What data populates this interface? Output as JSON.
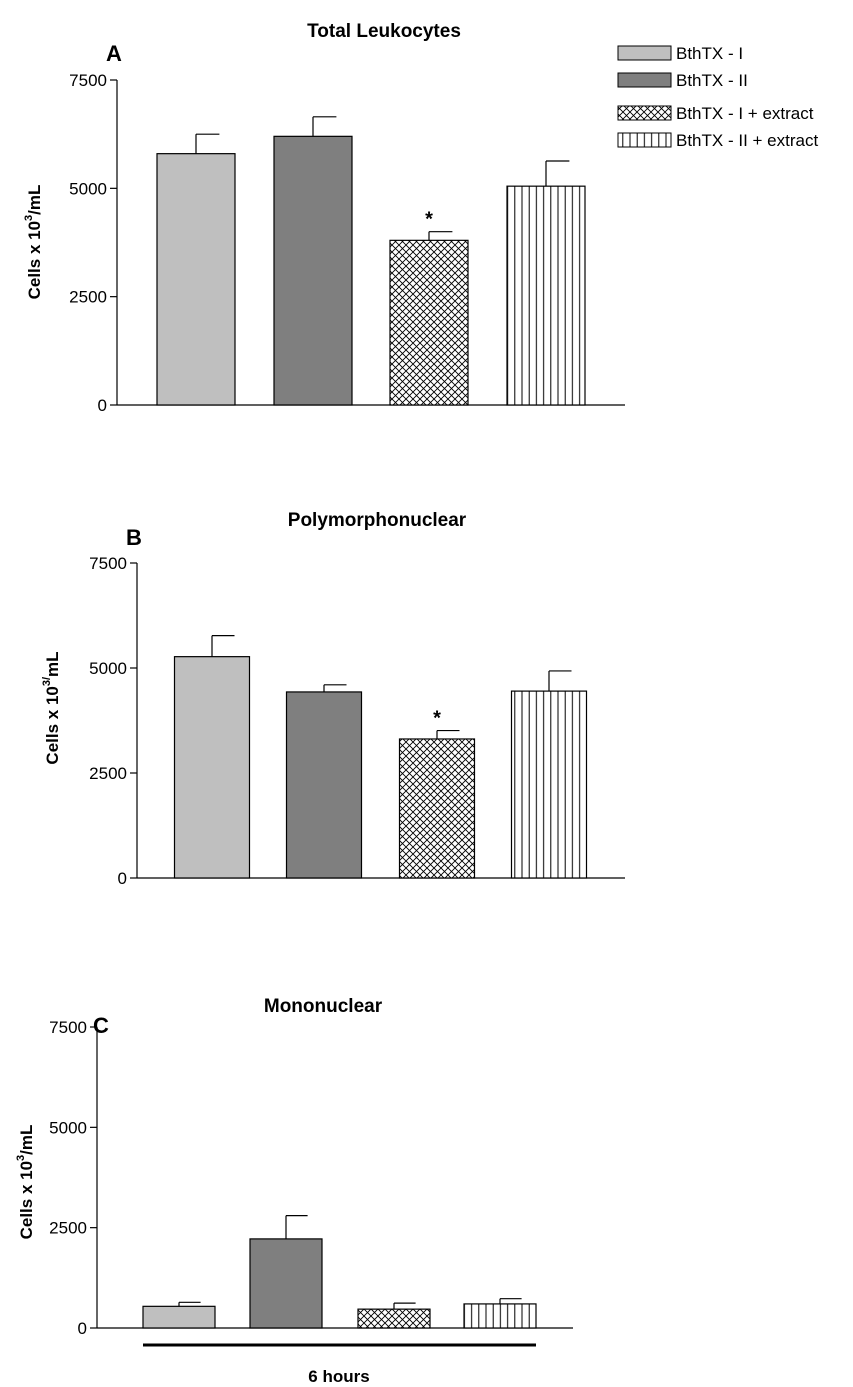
{
  "chart_data": [
    {
      "type": "bar",
      "panel_letter": "A",
      "title": "Total Leukocytes",
      "ylabel": "Cells x 10",
      "ylabel_sup": "3",
      "ylabel_tail": "/mL",
      "ylim": [
        0,
        7500
      ],
      "yticks": [
        0,
        2500,
        5000,
        7500
      ],
      "categories": [
        "BthTX - I",
        "BthTX - II",
        "BthTX - I + extract",
        "BthTX - II + extract"
      ],
      "values": [
        5800,
        6200,
        3800,
        5050
      ],
      "errors": [
        450,
        450,
        200,
        580
      ],
      "significance": [
        "",
        "",
        "*",
        ""
      ]
    },
    {
      "type": "bar",
      "panel_letter": "B",
      "title": "Polymorphonuclear",
      "ylabel": "Cells x 10",
      "ylabel_sup": "3/",
      "ylabel_tail": "mL",
      "ylim": [
        0,
        7500
      ],
      "yticks": [
        0,
        2500,
        5000,
        7500
      ],
      "categories": [
        "BthTX - I",
        "BthTX - II",
        "BthTX - I + extract",
        "BthTX - II + extract"
      ],
      "values": [
        5270,
        4430,
        3310,
        4450
      ],
      "errors": [
        500,
        170,
        200,
        480
      ],
      "significance": [
        "",
        "",
        "*",
        ""
      ]
    },
    {
      "type": "bar",
      "panel_letter": "C",
      "title": "Mononuclear",
      "ylabel": "Cells x 10",
      "ylabel_sup": "3",
      "ylabel_tail": "/mL",
      "ylim": [
        0,
        7500
      ],
      "yticks": [
        0,
        2500,
        5000,
        7500
      ],
      "categories": [
        "BthTX - I",
        "BthTX - II",
        "BthTX - I + extract",
        "BthTX - II + extract"
      ],
      "values": [
        540,
        2220,
        470,
        600
      ],
      "errors": [
        100,
        580,
        150,
        130
      ],
      "significance": [
        "",
        "",
        "",
        ""
      ],
      "xlabel": "6 hours"
    }
  ],
  "legend": {
    "placement": "top-right",
    "items": [
      {
        "label": "BthTX - I",
        "fill": "#bfbfbf",
        "pattern": "solid"
      },
      {
        "label": "BthTX - II",
        "fill": "#7f7f7f",
        "pattern": "solid"
      },
      {
        "label": "BthTX - I + extract",
        "fill": "#ffffff",
        "pattern": "crosshatch"
      },
      {
        "label": "BthTX - II + extract",
        "fill": "#ffffff",
        "pattern": "vertical-lines"
      }
    ]
  },
  "colors": {
    "light_gray": "#bfbfbf",
    "dark_gray": "#7f7f7f",
    "ink": "#000000"
  }
}
